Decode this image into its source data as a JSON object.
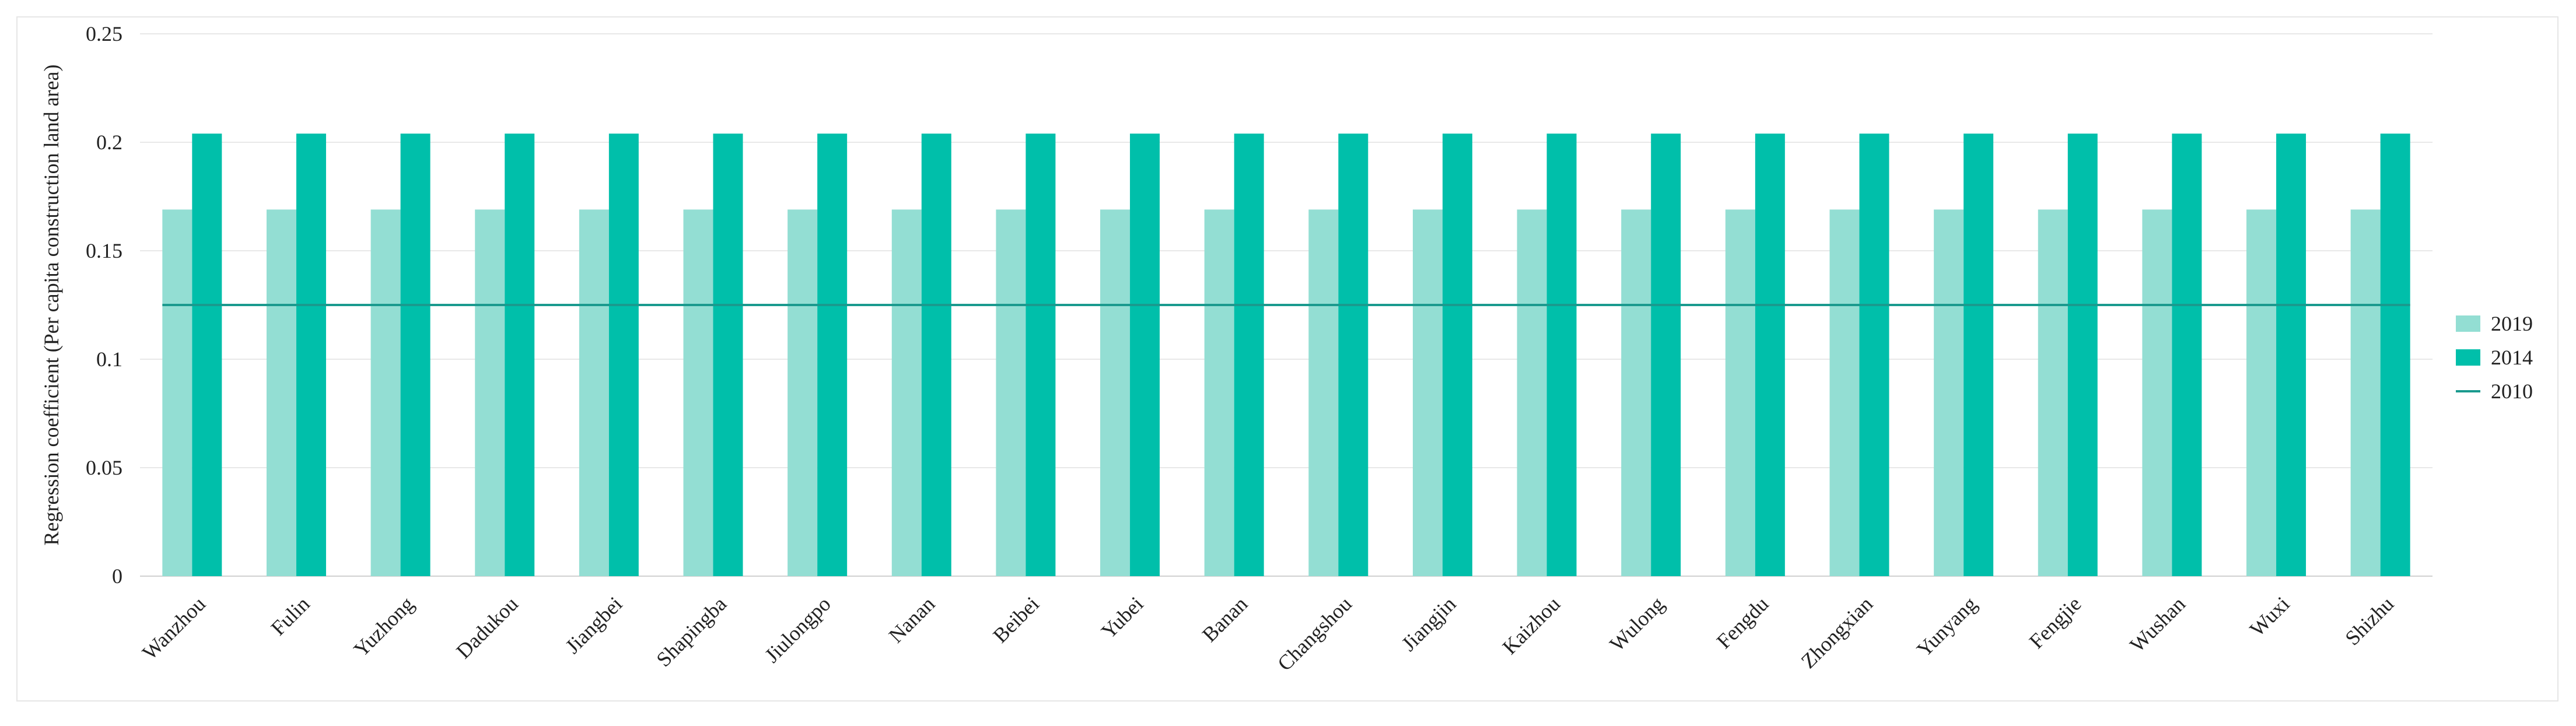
{
  "chart_data": {
    "type": "bar",
    "title": "",
    "xlabel": "",
    "ylabel": "Regression coefficient (Per capita construction land area)",
    "ylim": [
      0,
      0.25
    ],
    "yticks": [
      "0",
      "0.05",
      "0.1",
      "0.15",
      "0.2",
      "0.25"
    ],
    "ytick_values": [
      0,
      0.05,
      0.1,
      0.15,
      0.2,
      0.25
    ],
    "grid": "horizontal",
    "legend_position": "right",
    "categories": [
      "Wanzhou",
      "Fulin",
      "Yuzhong",
      "Dadukou",
      "Jiangbei",
      "Shapingba",
      "Jiulongpo",
      "Nanan",
      "Beibei",
      "Yubei",
      "Banan",
      "Changshou",
      "Jiangjin",
      "Kaizhou",
      "Wulong",
      "Fengdu",
      "Zhongxian",
      "Yunyang",
      "Fengjie",
      "Wushan",
      "Wuxi",
      "Shizhu"
    ],
    "series": [
      {
        "name": "2019",
        "kind": "bar",
        "color": "#93ded3",
        "values": [
          0.169,
          0.169,
          0.169,
          0.169,
          0.169,
          0.169,
          0.169,
          0.169,
          0.169,
          0.169,
          0.169,
          0.169,
          0.169,
          0.169,
          0.169,
          0.169,
          0.169,
          0.169,
          0.169,
          0.169,
          0.169,
          0.169
        ]
      },
      {
        "name": "2014",
        "kind": "bar",
        "color": "#00bfaa",
        "values": [
          0.204,
          0.204,
          0.204,
          0.204,
          0.204,
          0.204,
          0.204,
          0.204,
          0.204,
          0.204,
          0.204,
          0.204,
          0.204,
          0.204,
          0.204,
          0.204,
          0.204,
          0.204,
          0.204,
          0.204,
          0.204,
          0.204
        ]
      },
      {
        "name": "2010",
        "kind": "line",
        "color": "#1a9a8e",
        "values": [
          0.125,
          0.125,
          0.125,
          0.125,
          0.125,
          0.125,
          0.125,
          0.125,
          0.125,
          0.125,
          0.125,
          0.125,
          0.125,
          0.125,
          0.125,
          0.125,
          0.125,
          0.125,
          0.125,
          0.125,
          0.125,
          0.125
        ]
      }
    ]
  }
}
